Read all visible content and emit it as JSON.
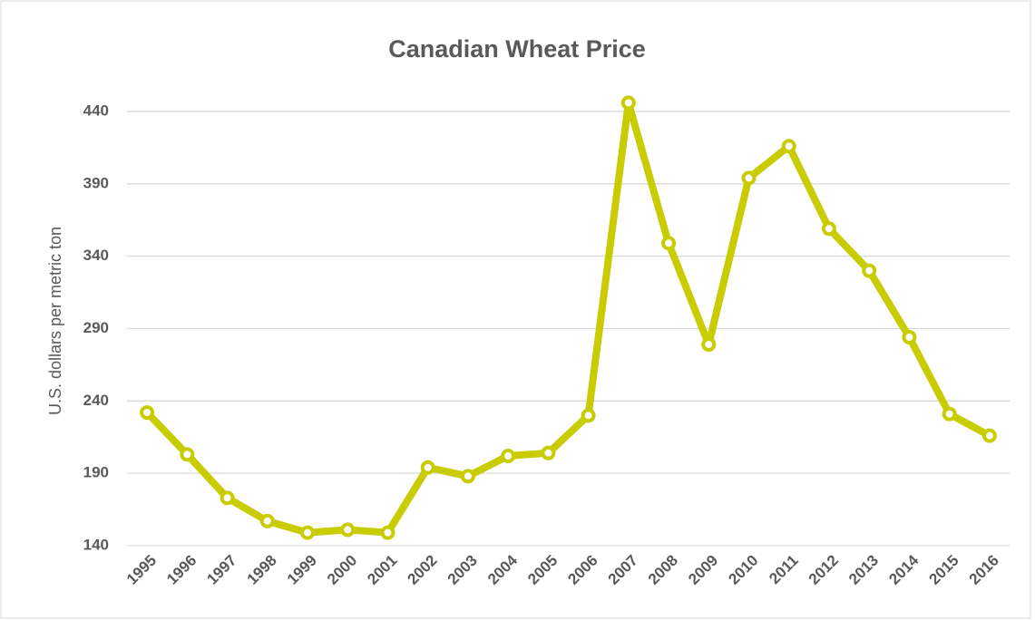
{
  "chart_data": {
    "type": "line",
    "title": "Canadian Wheat Price",
    "y_label": "U.S. dollars per metric ton",
    "categories": [
      "1995",
      "1996",
      "1997",
      "1998",
      "1999",
      "2000",
      "2001",
      "2002",
      "2003",
      "2004",
      "2005",
      "2006",
      "2007",
      "2008",
      "2009",
      "2010",
      "2011",
      "2012",
      "2013",
      "2014",
      "2015",
      "2016"
    ],
    "series": [
      {
        "name": "Canadian Wheat Price",
        "color": "#c8cc00",
        "values": [
          232,
          203,
          173,
          157,
          149,
          151,
          149,
          194,
          188,
          202,
          204,
          230,
          446,
          349,
          279,
          394,
          416,
          359,
          330,
          284,
          231,
          216
        ]
      }
    ],
    "ylim": [
      140,
      455
    ],
    "yticks": [
      140,
      190,
      240,
      290,
      340,
      390,
      440
    ],
    "grid": true
  }
}
